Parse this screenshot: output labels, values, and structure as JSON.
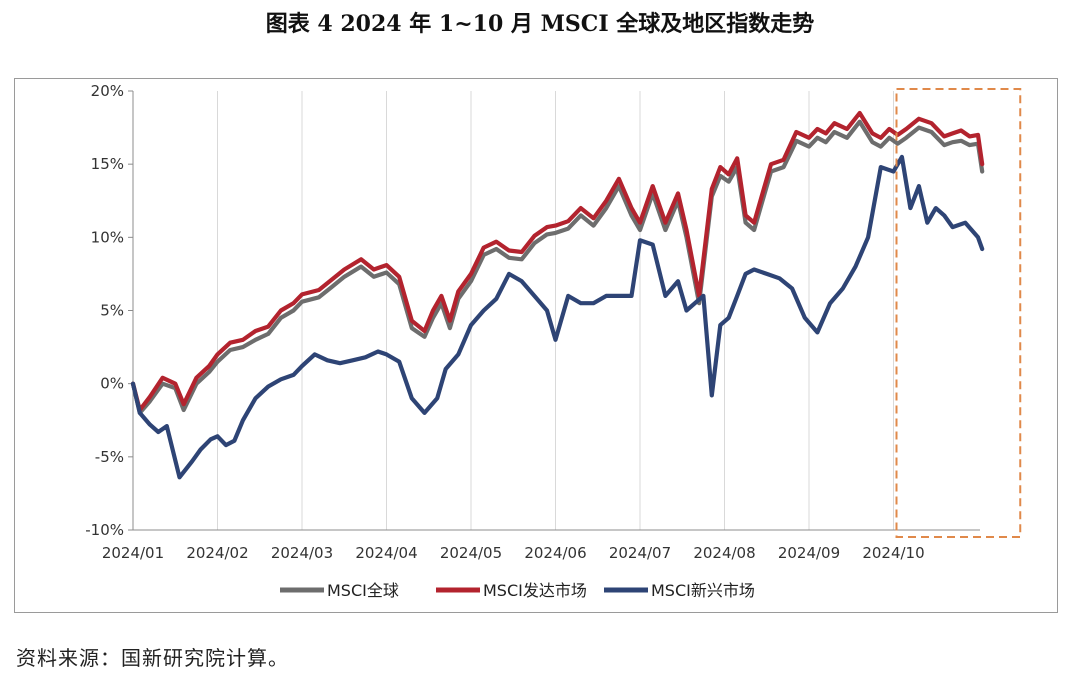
{
  "title": "图表 4  2024 年 1~10 月 MSCI 全球及地区指数走势",
  "source": "资料来源：国新研究院计算。",
  "colors": {
    "global": "#6d6d6d",
    "developed": "#b3232e",
    "emerging": "#2e4475",
    "highlight": "#e0894a",
    "grid": "#d9d9d9"
  },
  "chart_data": {
    "type": "line",
    "title": "",
    "xlabel": "",
    "ylabel": "",
    "ylim": [
      -10,
      20
    ],
    "y_ticks": [
      -10,
      -5,
      0,
      5,
      10,
      15,
      20
    ],
    "y_tick_labels": [
      "-10%",
      "-5%",
      "0%",
      "5%",
      "10%",
      "15%",
      "20%"
    ],
    "x_range": [
      0,
      10.5
    ],
    "x_ticks": [
      0,
      1,
      2,
      3,
      4,
      5,
      6,
      7,
      8,
      9
    ],
    "x_tick_labels": [
      "2024/01",
      "2024/02",
      "2024/03",
      "2024/04",
      "2024/05",
      "2024/06",
      "2024/07",
      "2024/08",
      "2024/09",
      "2024/10"
    ],
    "x_unit": "month index since 2024/01",
    "grid": "vertical",
    "legend_position": "bottom",
    "highlight_range": [
      9.0,
      10.5
    ],
    "series": [
      {
        "name": "MSCI全球",
        "color": "#6d6d6d",
        "x": [
          0,
          0.08,
          0.2,
          0.35,
          0.5,
          0.6,
          0.75,
          0.9,
          1.0,
          1.15,
          1.3,
          1.45,
          1.6,
          1.75,
          1.9,
          2.0,
          2.2,
          2.35,
          2.5,
          2.7,
          2.85,
          3.0,
          3.15,
          3.3,
          3.45,
          3.55,
          3.65,
          3.75,
          3.85,
          4.0,
          4.15,
          4.3,
          4.45,
          4.6,
          4.75,
          4.9,
          5.0,
          5.15,
          5.3,
          5.45,
          5.6,
          5.75,
          5.9,
          6.0,
          6.15,
          6.3,
          6.45,
          6.55,
          6.7,
          6.85,
          6.95,
          7.05,
          7.15,
          7.25,
          7.35,
          7.45,
          7.55,
          7.7,
          7.85,
          8.0,
          8.1,
          8.2,
          8.3,
          8.45,
          8.6,
          8.75,
          8.85,
          8.95,
          9.05,
          9.15,
          9.3,
          9.45,
          9.6,
          9.7,
          9.8,
          9.9,
          10.0,
          10.05
        ],
        "y": [
          0,
          -2.0,
          -1.2,
          0.0,
          -0.3,
          -1.8,
          0.0,
          0.8,
          1.5,
          2.3,
          2.5,
          3.0,
          3.4,
          4.5,
          5.0,
          5.6,
          5.9,
          6.6,
          7.3,
          8.0,
          7.3,
          7.6,
          6.8,
          3.8,
          3.2,
          4.5,
          5.5,
          3.8,
          5.8,
          7.0,
          8.8,
          9.2,
          8.6,
          8.5,
          9.6,
          10.2,
          10.3,
          10.6,
          11.5,
          10.8,
          12.0,
          13.5,
          11.5,
          10.5,
          13.0,
          10.5,
          12.5,
          10.0,
          5.5,
          12.8,
          14.2,
          13.8,
          14.8,
          11.0,
          10.5,
          12.5,
          14.5,
          14.8,
          16.6,
          16.2,
          16.8,
          16.5,
          17.2,
          16.8,
          17.9,
          16.5,
          16.2,
          16.8,
          16.4,
          16.8,
          17.5,
          17.2,
          16.3,
          16.5,
          16.6,
          16.3,
          16.4,
          14.5
        ]
      },
      {
        "name": "MSCI发达市场",
        "color": "#b3232e",
        "x": [
          0,
          0.08,
          0.2,
          0.35,
          0.5,
          0.6,
          0.75,
          0.9,
          1.0,
          1.15,
          1.3,
          1.45,
          1.6,
          1.75,
          1.9,
          2.0,
          2.2,
          2.35,
          2.5,
          2.7,
          2.85,
          3.0,
          3.15,
          3.3,
          3.45,
          3.55,
          3.65,
          3.75,
          3.85,
          4.0,
          4.15,
          4.3,
          4.45,
          4.6,
          4.75,
          4.9,
          5.0,
          5.15,
          5.3,
          5.45,
          5.6,
          5.75,
          5.9,
          6.0,
          6.15,
          6.3,
          6.45,
          6.55,
          6.7,
          6.85,
          6.95,
          7.05,
          7.15,
          7.25,
          7.35,
          7.45,
          7.55,
          7.7,
          7.85,
          8.0,
          8.1,
          8.2,
          8.3,
          8.45,
          8.6,
          8.75,
          8.85,
          8.95,
          9.05,
          9.15,
          9.3,
          9.45,
          9.6,
          9.7,
          9.8,
          9.9,
          10.0,
          10.05
        ],
        "y": [
          0,
          -1.8,
          -0.9,
          0.4,
          0.0,
          -1.4,
          0.4,
          1.2,
          2.0,
          2.8,
          3.0,
          3.6,
          3.9,
          5.0,
          5.5,
          6.1,
          6.4,
          7.1,
          7.8,
          8.5,
          7.8,
          8.1,
          7.3,
          4.3,
          3.6,
          5.0,
          6.0,
          4.3,
          6.3,
          7.5,
          9.3,
          9.7,
          9.1,
          9.0,
          10.1,
          10.7,
          10.8,
          11.1,
          12.0,
          11.3,
          12.5,
          14.0,
          12.0,
          11.0,
          13.5,
          11.0,
          13.0,
          10.5,
          6.0,
          13.3,
          14.8,
          14.3,
          15.4,
          11.5,
          11.0,
          13.0,
          15.0,
          15.3,
          17.2,
          16.8,
          17.4,
          17.1,
          17.8,
          17.4,
          18.5,
          17.1,
          16.8,
          17.4,
          17.0,
          17.4,
          18.1,
          17.8,
          16.9,
          17.1,
          17.3,
          16.9,
          17.0,
          15.0
        ]
      },
      {
        "name": "MSCI新兴市场",
        "color": "#2e4475",
        "x": [
          0,
          0.08,
          0.2,
          0.3,
          0.4,
          0.55,
          0.7,
          0.8,
          0.92,
          1.0,
          1.1,
          1.2,
          1.3,
          1.45,
          1.6,
          1.75,
          1.9,
          2.0,
          2.15,
          2.3,
          2.45,
          2.6,
          2.75,
          2.9,
          3.0,
          3.15,
          3.3,
          3.45,
          3.6,
          3.7,
          3.85,
          4.0,
          4.15,
          4.3,
          4.45,
          4.6,
          4.75,
          4.9,
          5.0,
          5.15,
          5.3,
          5.45,
          5.6,
          5.75,
          5.9,
          6.0,
          6.15,
          6.3,
          6.45,
          6.55,
          6.65,
          6.75,
          6.85,
          6.95,
          7.05,
          7.15,
          7.25,
          7.35,
          7.5,
          7.65,
          7.8,
          7.95,
          8.1,
          8.25,
          8.4,
          8.55,
          8.7,
          8.85,
          9.0,
          9.1,
          9.2,
          9.3,
          9.4,
          9.5,
          9.6,
          9.7,
          9.85,
          10.0,
          10.05
        ],
        "y": [
          0,
          -2.0,
          -2.8,
          -3.3,
          -2.9,
          -6.4,
          -5.3,
          -4.5,
          -3.8,
          -3.6,
          -4.2,
          -3.9,
          -2.5,
          -1.0,
          -0.2,
          0.3,
          0.6,
          1.2,
          2.0,
          1.6,
          1.4,
          1.6,
          1.8,
          2.2,
          2.0,
          1.5,
          -1.0,
          -2.0,
          -1.0,
          1.0,
          2.0,
          4.0,
          5.0,
          5.8,
          7.5,
          7.0,
          6.0,
          5.0,
          3.0,
          6.0,
          5.5,
          5.5,
          6.0,
          6.0,
          6.0,
          9.8,
          9.5,
          6.0,
          7.0,
          5.0,
          5.5,
          6.0,
          -0.8,
          4.0,
          4.5,
          6.0,
          7.5,
          7.8,
          7.5,
          7.2,
          6.5,
          4.5,
          3.5,
          5.5,
          6.5,
          8.0,
          10.0,
          14.8,
          14.5,
          15.5,
          12.0,
          13.5,
          11.0,
          12.0,
          11.5,
          10.7,
          11.0,
          10.0,
          9.2
        ]
      }
    ]
  }
}
